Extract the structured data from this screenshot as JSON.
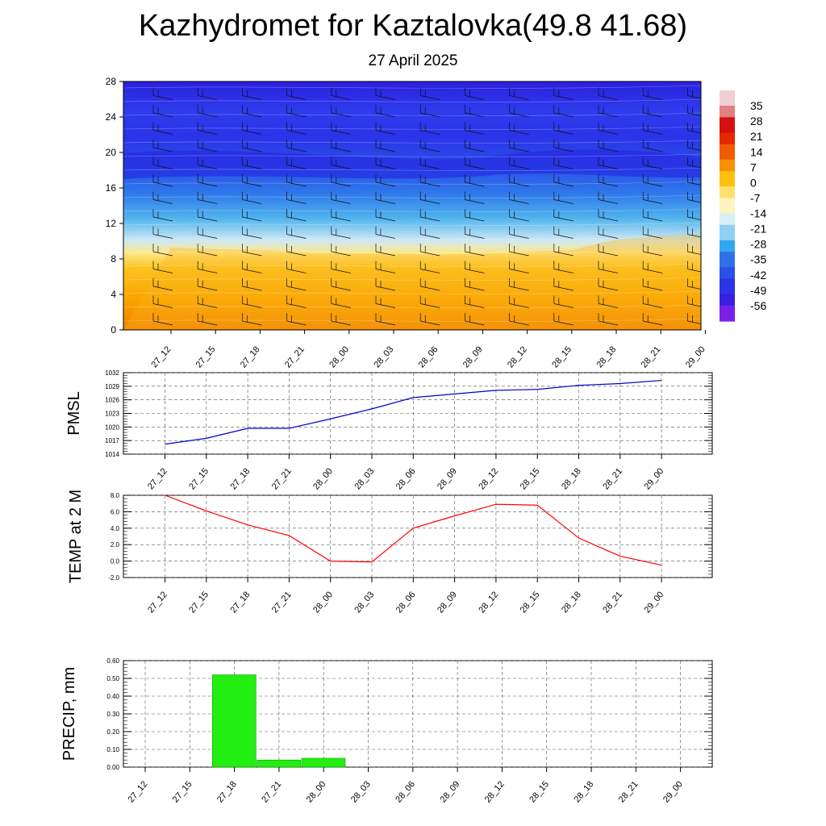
{
  "page": {
    "title": "Kazhydromet for Kaztalovka(49.8 41.68)",
    "subtitle": "27 April 2025"
  },
  "colors": {
    "pmsl_line": "#0000cc",
    "temp_line": "#ff0000",
    "precip_bar": "#22ee11",
    "precip_bar_edge": "#119900"
  },
  "chart_data": [
    {
      "type": "heatmap",
      "id": "cross_section",
      "x_ticks": [
        "27_12",
        "27_15",
        "27_18",
        "27_21",
        "28_00",
        "28_03",
        "28_06",
        "28_09",
        "28_12",
        "28_15",
        "28_18",
        "28_21",
        "29_00"
      ],
      "y_ticks": [
        "0",
        "4",
        "8",
        "12",
        "16",
        "20",
        "24",
        "28"
      ],
      "ylim": [
        0,
        28
      ],
      "colorbar_labels": [
        "35",
        "28",
        "21",
        "14",
        "7",
        "0",
        "-7",
        "-14",
        "-21",
        "-28",
        "-35",
        "-42",
        "-49",
        "-56"
      ],
      "colorbar_range": [
        -63,
        42
      ],
      "overlay": "wind barbs",
      "freezing_level": [
        9.3,
        9.1,
        9.0,
        8.7,
        8.6,
        8.6,
        8.5,
        8.6,
        8.8,
        9.0,
        10.2,
        10.6,
        10.8
      ]
    },
    {
      "type": "line",
      "id": "pmsl",
      "ylabel": "PMSL",
      "x": [
        "27_12",
        "27_15",
        "27_18",
        "27_21",
        "28_00",
        "28_03",
        "28_06",
        "28_09",
        "28_12",
        "28_15",
        "28_18",
        "28_21",
        "29_00"
      ],
      "values": [
        1016.2,
        1017.5,
        1019.7,
        1019.7,
        1021.8,
        1024.0,
        1026.5,
        1027.3,
        1028.1,
        1028.3,
        1029.2,
        1029.6,
        1030.3
      ],
      "y_ticks": [
        "1014",
        "1017",
        "1020",
        "1023",
        "1026",
        "1029",
        "1032"
      ],
      "ylim": [
        1014,
        1032
      ],
      "grid": true
    },
    {
      "type": "line",
      "id": "temp2m",
      "ylabel": "TEMP at 2 M",
      "x": [
        "27_12",
        "27_15",
        "27_18",
        "27_21",
        "28_00",
        "28_03",
        "28_06",
        "28_09",
        "28_12",
        "28_15",
        "28_18",
        "28_21",
        "29_00"
      ],
      "values": [
        8.0,
        6.1,
        4.4,
        3.1,
        0.0,
        -0.1,
        4.0,
        5.5,
        6.9,
        6.8,
        2.8,
        0.6,
        -0.5
      ],
      "y_ticks": [
        "-2.0",
        "0.0",
        "2.0",
        "4.0",
        "6.0",
        "8.0"
      ],
      "ylim": [
        -2,
        8
      ],
      "grid": true
    },
    {
      "type": "bar",
      "id": "precip",
      "ylabel": "PRECIP, mm",
      "categories": [
        "27_12",
        "27_15",
        "27_18",
        "27_21",
        "28_00",
        "28_03",
        "28_06",
        "28_09",
        "28_12",
        "28_15",
        "28_18",
        "28_21",
        "29_00"
      ],
      "values": [
        0,
        0.52,
        0.04,
        0.05,
        0,
        0,
        0,
        0,
        0,
        0,
        0,
        0,
        0
      ],
      "y_ticks": [
        "0.00",
        "0.10",
        "0.20",
        "0.30",
        "0.40",
        "0.50",
        "0.60"
      ],
      "ylim": [
        0,
        0.6
      ],
      "grid": true
    }
  ]
}
